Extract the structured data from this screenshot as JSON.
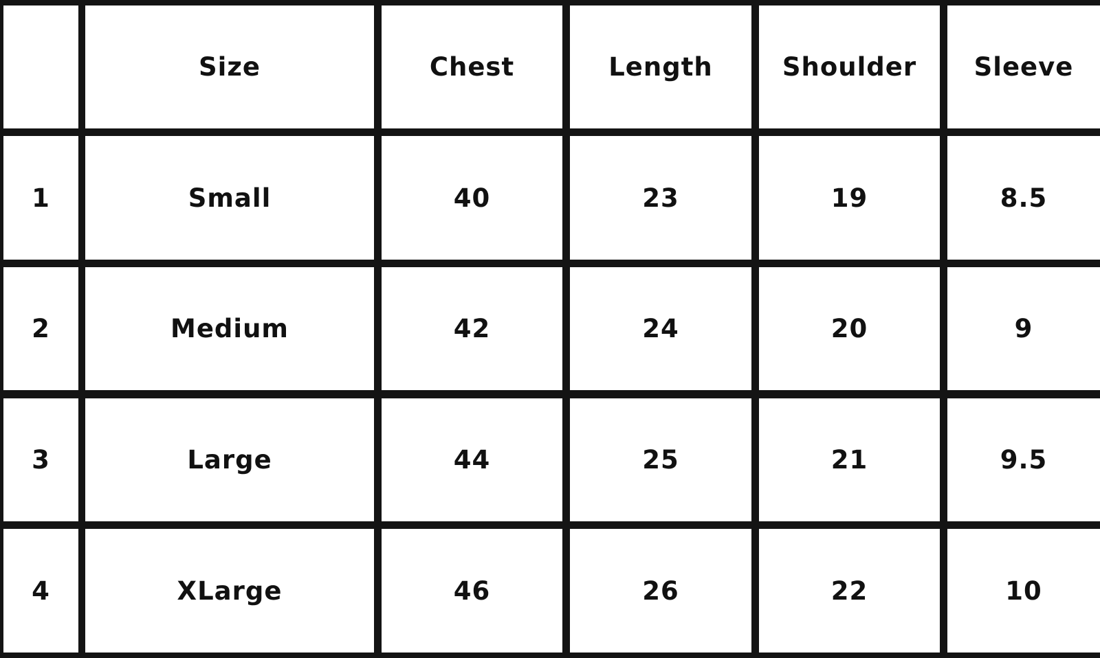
{
  "table": {
    "headers": [
      "",
      "Size",
      "Chest",
      "Length",
      "Shoulder",
      "Sleeve"
    ],
    "rows": [
      [
        "1",
        "Small",
        "40",
        "23",
        "19",
        "8.5"
      ],
      [
        "2",
        "Medium",
        "42",
        "24",
        "20",
        "9"
      ],
      [
        "3",
        "Large",
        "44",
        "25",
        "21",
        "9.5"
      ],
      [
        "4",
        "XLarge",
        "46",
        "26",
        "22",
        "10"
      ]
    ]
  }
}
